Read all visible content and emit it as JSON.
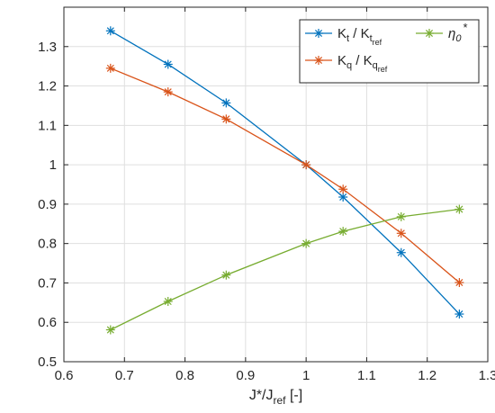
{
  "chart_data": {
    "type": "line",
    "title": "",
    "xlabel": {
      "main": "J*/J",
      "sub": "ref",
      "suffix": " [-]"
    },
    "ylabel": "",
    "xlim": [
      0.6,
      1.3
    ],
    "ylim": [
      0.5,
      1.4
    ],
    "xticks": [
      "0.6",
      "0.7",
      "0.8",
      "0.9",
      "1",
      "1.1",
      "1.2",
      "1.3"
    ],
    "yticks": [
      "0.5",
      "0.6",
      "0.7",
      "0.8",
      "0.9",
      "1",
      "1.1",
      "1.2",
      "1.3"
    ],
    "grid": true,
    "legend_position": "top-right",
    "series": [
      {
        "name": "Kt / Kt_ref",
        "legend": {
          "a": "K",
          "a_sub": "t",
          "mid": " / K",
          "b_sub": "t",
          "b_subsub": "ref"
        },
        "color": "#0072BD",
        "marker": "asterisk",
        "x": [
          0.677,
          0.772,
          0.868,
          1.0,
          1.061,
          1.157,
          1.253
        ],
        "y": [
          1.34,
          1.255,
          1.157,
          1.0,
          0.918,
          0.777,
          0.621
        ]
      },
      {
        "name": "Kq / Kq_ref",
        "legend": {
          "a": "K",
          "a_sub": "q",
          "mid": " / K",
          "b_sub": "q",
          "b_subsub": "ref"
        },
        "color": "#D95319",
        "marker": "asterisk",
        "x": [
          0.677,
          0.772,
          0.868,
          1.0,
          1.061,
          1.157,
          1.253
        ],
        "y": [
          1.245,
          1.185,
          1.116,
          1.0,
          0.938,
          0.826,
          0.701
        ]
      },
      {
        "name": "η0*",
        "legend": {
          "a": "η",
          "a_sub": "0",
          "sup": "*"
        },
        "color": "#77AC30",
        "marker": "asterisk",
        "x": [
          0.677,
          0.772,
          0.868,
          1.0,
          1.061,
          1.157,
          1.253
        ],
        "y": [
          0.581,
          0.653,
          0.72,
          0.8,
          0.831,
          0.868,
          0.887
        ]
      }
    ]
  }
}
